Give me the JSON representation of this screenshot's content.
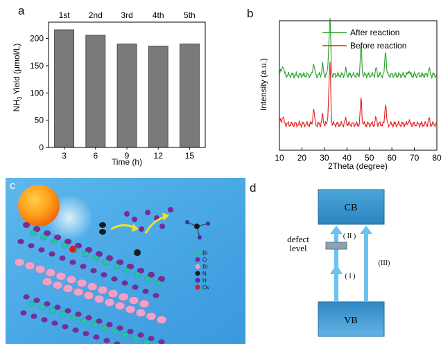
{
  "panels": {
    "a": "a",
    "b": "b",
    "c": "c",
    "d": "d"
  },
  "chart_data": [
    {
      "type": "bar",
      "panel": "a",
      "categories": [
        "3",
        "6",
        "9",
        "12",
        "15"
      ],
      "values": [
        216,
        206,
        190,
        186,
        190
      ],
      "top_labels": [
        "1st",
        "2nd",
        "3rd",
        "4th",
        "5th"
      ],
      "xlabel": "Time (h)",
      "ylabel_main": "NH",
      "ylabel_sub": "3",
      "ylabel_rest": " Yield (μmol/L)",
      "ylim": [
        0,
        230
      ],
      "yticks": [
        "0",
        "50",
        "100",
        "150",
        "200"
      ],
      "bar_color": "#7a7a7a"
    },
    {
      "type": "line",
      "panel": "b",
      "xlabel": "2Theta (degree)",
      "ylabel": "Intensity (a.u.)",
      "xlim": [
        10,
        80
      ],
      "xticks": [
        "10",
        "20",
        "30",
        "40",
        "50",
        "60",
        "70",
        "80"
      ],
      "legend_position": "top-right",
      "series": [
        {
          "name": "After reaction",
          "color": "#2aa02a",
          "baseline": 0.58,
          "peaks": [
            [
              11.5,
              0.07
            ],
            [
              25.2,
              0.1
            ],
            [
              29.2,
              0.08
            ],
            [
              31.9,
              0.15
            ],
            [
              32.5,
              0.4
            ],
            [
              39.5,
              0.04
            ],
            [
              46.3,
              0.22
            ],
            [
              53.0,
              0.05
            ],
            [
              57.2,
              0.2
            ],
            [
              67.5,
              0.04
            ],
            [
              76.5,
              0.05
            ]
          ]
        },
        {
          "name": "Before reaction",
          "color": "#e02020",
          "baseline": 0.2,
          "peaks": [
            [
              11.5,
              0.05
            ],
            [
              25.2,
              0.12
            ],
            [
              29.2,
              0.07
            ],
            [
              31.9,
              0.15
            ],
            [
              32.5,
              0.44
            ],
            [
              39.5,
              0.04
            ],
            [
              46.3,
              0.2
            ],
            [
              53.0,
              0.05
            ],
            [
              57.2,
              0.17
            ],
            [
              67.5,
              0.03
            ],
            [
              76.5,
              0.04
            ]
          ]
        }
      ]
    }
  ],
  "structure_legend": [
    {
      "label": "Bi",
      "color": "#27c3a8"
    },
    {
      "label": "O",
      "color": "#7b2b96"
    },
    {
      "label": "Br",
      "color": "#f2a0c8"
    },
    {
      "label": "N",
      "color": "#1b1b1b"
    },
    {
      "label": "H",
      "color": "#4a2ea0"
    },
    {
      "label": "Ov",
      "color": "#e11b1b"
    }
  ],
  "band_diagram": {
    "cb": "CB",
    "vb": "VB",
    "defect_line1": "defect",
    "defect_line2": "level",
    "step1": "( I )",
    "step2": "( II )",
    "step3": "(III)"
  }
}
